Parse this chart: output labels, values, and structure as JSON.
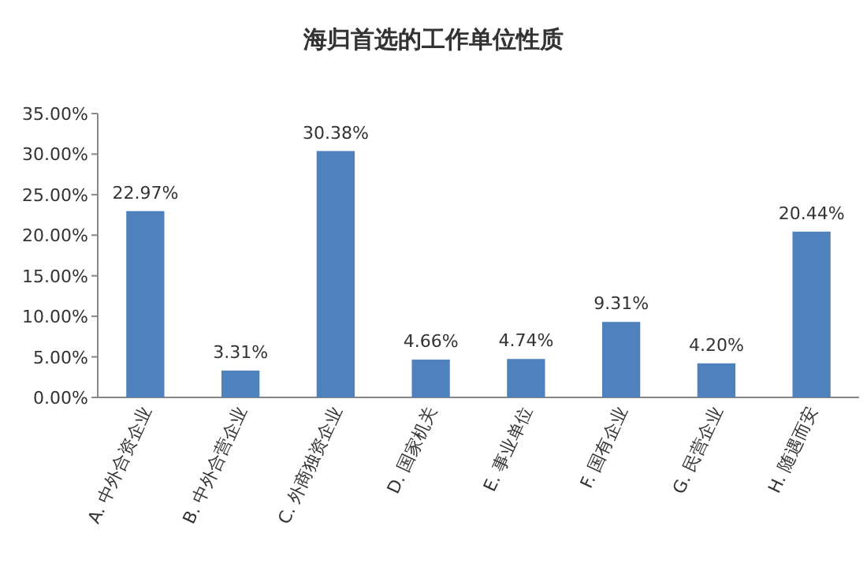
{
  "chart_data": {
    "type": "bar",
    "title": "海归首选的工作单位性质",
    "categories": [
      "A. 中外合资企业",
      "B. 中外合营企业",
      "C. 外商独资企业",
      "D. 国家机关",
      "E. 事业单位",
      "F. 国有企业",
      "G. 民营企业",
      "H. 随遇而安"
    ],
    "values": [
      22.97,
      3.31,
      30.38,
      4.66,
      4.74,
      9.31,
      4.2,
      20.44
    ],
    "value_labels": [
      "22.97%",
      "3.31%",
      "30.38%",
      "4.66%",
      "4.74%",
      "9.31%",
      "4.20%",
      "20.44%"
    ],
    "color": "#4f81bd",
    "ylim": [
      0,
      35
    ],
    "yticks": [
      {
        "value": 0,
        "label": "0.00%"
      },
      {
        "value": 5,
        "label": "5.00%"
      },
      {
        "value": 10,
        "label": "10.00%"
      },
      {
        "value": 15,
        "label": "15.00%"
      },
      {
        "value": 20,
        "label": "20.00%"
      },
      {
        "value": 25,
        "label": "25.00%"
      },
      {
        "value": 30,
        "label": "30.00%"
      },
      {
        "value": 35,
        "label": "35.00%"
      }
    ]
  }
}
